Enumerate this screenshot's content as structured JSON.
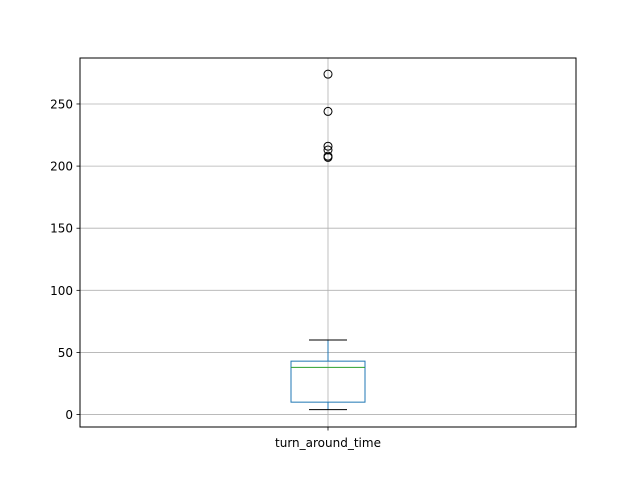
{
  "chart_data": {
    "type": "boxplot",
    "categories": [
      "turn_around_time"
    ],
    "series": [
      {
        "whisker_low": 4,
        "q1": 10,
        "median": 38,
        "q3": 43,
        "whisker_high": 60,
        "outliers": [
          274,
          244,
          216,
          213,
          208,
          207
        ]
      }
    ],
    "ylim": [
      -10,
      287
    ],
    "yticks": [
      0,
      50,
      100,
      150,
      200,
      250
    ],
    "grid": true,
    "colors": {
      "box": "#1f77b4",
      "median": "#2ca02c",
      "whisker": "#000000",
      "outlier": "#000000",
      "grid": "#b0b0b0"
    }
  }
}
